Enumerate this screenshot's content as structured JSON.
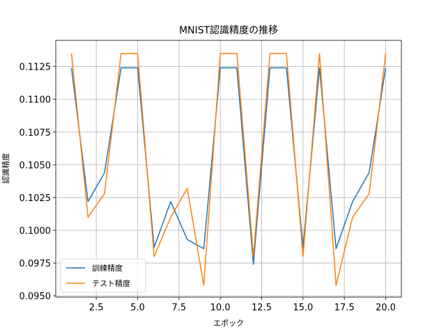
{
  "chart_data": {
    "type": "line",
    "title": "MNIST認識精度の推移",
    "xlabel": "エポック",
    "ylabel": "認識精度",
    "xlim": [
      0.05,
      20.95
    ],
    "ylim": [
      0.0949,
      0.1145
    ],
    "xticks": [
      2.5,
      5.0,
      7.5,
      10.0,
      12.5,
      15.0,
      17.5,
      20.0
    ],
    "xtick_labels": [
      "2.5",
      "5.0",
      "7.5",
      "10.0",
      "12.5",
      "15.0",
      "17.5",
      "20.0"
    ],
    "yticks": [
      0.095,
      0.0975,
      0.1,
      0.1025,
      0.105,
      0.1075,
      0.11,
      0.1125
    ],
    "ytick_labels": [
      "0.0950",
      "0.0975",
      "0.1000",
      "0.1025",
      "0.1050",
      "0.1075",
      "0.1100",
      "0.1125"
    ],
    "grid": true,
    "legend_position": "lower-left",
    "x": [
      1,
      2,
      3,
      4,
      5,
      6,
      7,
      8,
      9,
      10,
      11,
      12,
      13,
      14,
      15,
      16,
      17,
      18,
      19,
      20
    ],
    "series": [
      {
        "name": "訓練精度",
        "color": "#1f77b4",
        "values": [
          0.1124,
          0.1022,
          0.1044,
          0.1124,
          0.1124,
          0.0987,
          0.1022,
          0.0993,
          0.0986,
          0.1124,
          0.1124,
          0.0974,
          0.1124,
          0.1124,
          0.0987,
          0.1124,
          0.0986,
          0.1022,
          0.1044,
          0.1124
        ]
      },
      {
        "name": "テスト精度",
        "color": "#ff7f0e",
        "values": [
          0.1135,
          0.101,
          0.1028,
          0.1135,
          0.1135,
          0.098,
          0.101,
          0.1032,
          0.0958,
          0.1135,
          0.1135,
          0.098,
          0.1135,
          0.1135,
          0.098,
          0.1135,
          0.0958,
          0.101,
          0.1028,
          0.1135
        ]
      }
    ]
  }
}
